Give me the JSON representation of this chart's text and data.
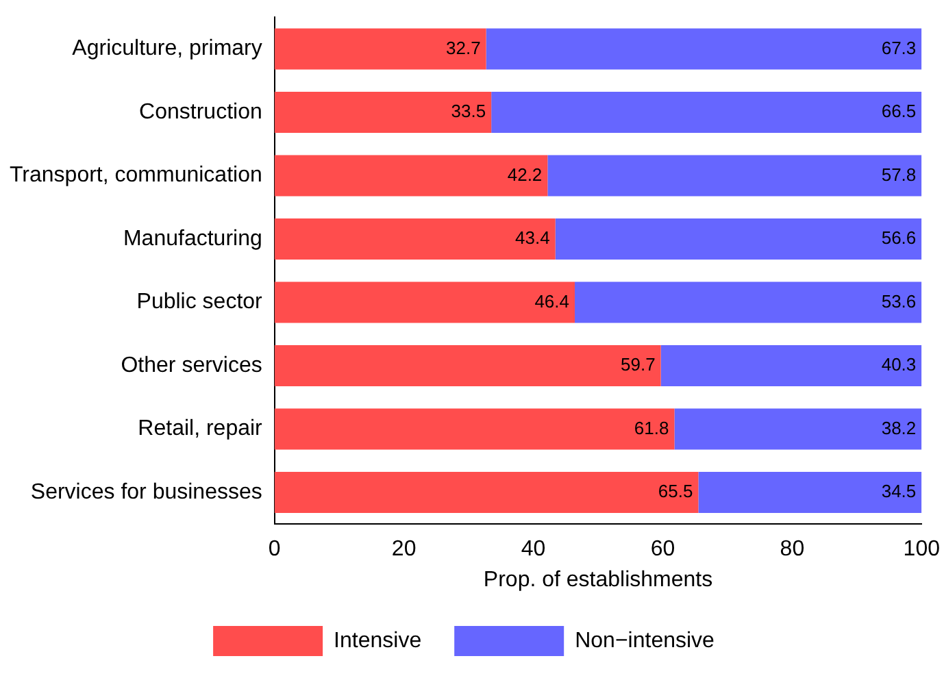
{
  "chart_data": {
    "type": "bar",
    "orientation": "horizontal",
    "stacked": true,
    "xlabel": "Prop. of establishments",
    "categories": [
      "Agriculture, primary",
      "Construction",
      "Transport, communication",
      "Manufacturing",
      "Public sector",
      "Other services",
      "Retail, repair",
      "Services for businesses"
    ],
    "series": [
      {
        "name": "Intensive",
        "color": "#ff4d4d",
        "values": [
          32.7,
          33.5,
          42.2,
          43.4,
          46.4,
          59.7,
          61.8,
          65.5
        ]
      },
      {
        "name": "Non−intensive",
        "color": "#6666ff",
        "values": [
          67.3,
          66.5,
          57.8,
          56.6,
          53.6,
          40.3,
          38.2,
          34.5
        ]
      }
    ],
    "xlim": [
      0,
      100
    ],
    "xticks": [
      0,
      20,
      40,
      60,
      80,
      100
    ],
    "grid": false,
    "legend": "bottom",
    "data_labels": true
  }
}
